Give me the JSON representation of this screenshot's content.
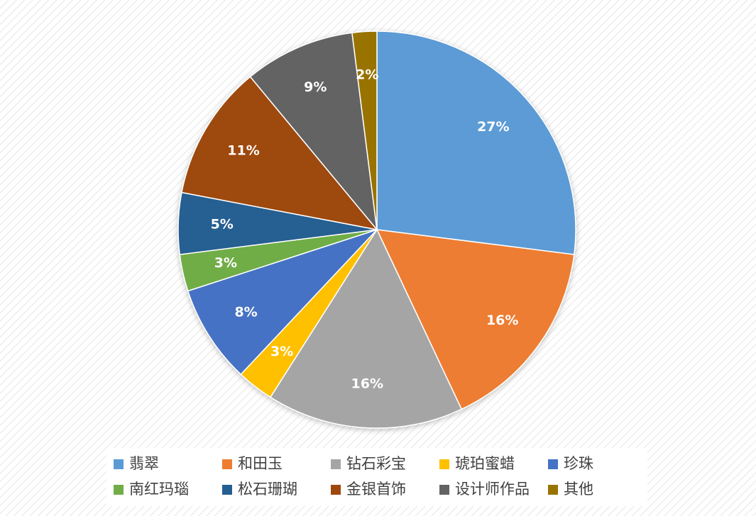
{
  "chart_data": {
    "type": "pie",
    "categories": [
      "翡翠",
      "和田玉",
      "钻石彩宝",
      "琥珀蜜蜡",
      "珍珠",
      "南红玛瑙",
      "松石珊瑚",
      "金银首饰",
      "设计师作品",
      "其他"
    ],
    "values": [
      27,
      16,
      16,
      3,
      8,
      3,
      5,
      11,
      9,
      2
    ],
    "value_labels": [
      "27%",
      "16%",
      "16%",
      "3%",
      "8%",
      "3%",
      "5%",
      "11%",
      "9%",
      "2%"
    ],
    "colors": [
      "#5b9bd5",
      "#ed7d31",
      "#a5a5a5",
      "#ffc000",
      "#4472c4",
      "#70ad47",
      "#255e91",
      "#9e480e",
      "#636363",
      "#997300"
    ],
    "legend": "bottom"
  }
}
